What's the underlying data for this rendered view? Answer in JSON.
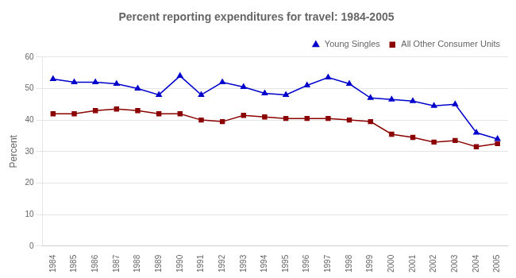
{
  "chart_data": {
    "type": "line",
    "title": "Percent reporting expenditures for travel: 1984-2005",
    "ylabel": "Percent",
    "x": [
      1984,
      1985,
      1986,
      1987,
      1988,
      1989,
      1990,
      1991,
      1992,
      1993,
      1994,
      1995,
      1996,
      1997,
      1998,
      1999,
      2000,
      2001,
      2002,
      2003,
      2004,
      2005
    ],
    "series": [
      {
        "name": "Young Singles",
        "color": "#0000CC",
        "marker": "triangle",
        "values": [
          53,
          52,
          52,
          51.5,
          50,
          48,
          54,
          48,
          52,
          50.5,
          48.5,
          48,
          51,
          53.5,
          51.5,
          47,
          46.5,
          46,
          44.5,
          45,
          36,
          34
        ]
      },
      {
        "name": "All Other Consumer Units",
        "color": "#8B0000",
        "marker": "square",
        "values": [
          42,
          42,
          43,
          43.5,
          43,
          42,
          42,
          40,
          39.5,
          41.5,
          41,
          40.5,
          40.5,
          40.5,
          40,
          39.5,
          35.5,
          34.5,
          33,
          33.5,
          31.5,
          32.5
        ]
      }
    ],
    "xlim": [
      1983.5,
      2005.5
    ],
    "xticks": [
      1984,
      1985,
      1986,
      1987,
      1988,
      1989,
      1990,
      1991,
      1992,
      1993,
      1994,
      1995,
      1996,
      1997,
      1998,
      1999,
      2000,
      2001,
      2002,
      2003,
      2004,
      2005
    ],
    "ylim": [
      0,
      60
    ],
    "yticks": [
      0,
      10,
      20,
      30,
      40,
      50,
      60
    ],
    "grid": "y",
    "legend": "upper right"
  }
}
